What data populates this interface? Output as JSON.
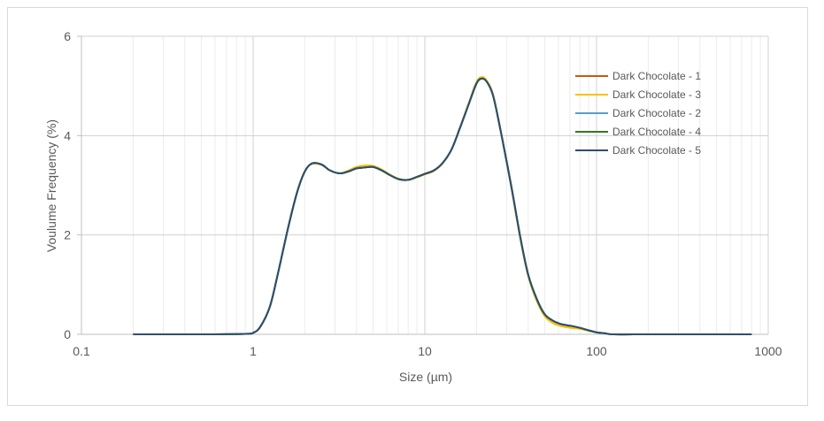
{
  "chart_data": {
    "type": "line",
    "title": "",
    "xlabel": "Size (µm)",
    "ylabel": "Voulume Frequency (%)",
    "x_scale": "log",
    "xlim": [
      0.1,
      1000
    ],
    "ylim": [
      0,
      6
    ],
    "x_ticks": [
      "0.1",
      "1",
      "10",
      "100",
      "1000"
    ],
    "y_ticks": [
      "0",
      "2",
      "4",
      "6"
    ],
    "grid": "on",
    "legend_position": "right",
    "colors": {
      "Dark Chocolate - 1": "#c55a11",
      "Dark Chocolate - 3": "#ffc000",
      "Dark Chocolate - 2": "#5b9bd5",
      "Dark Chocolate - 4": "#38761d",
      "Dark Chocolate - 5": "#2e4e6f"
    },
    "x": [
      0.2,
      0.5,
      0.9,
      1.0,
      1.1,
      1.25,
      1.4,
      1.6,
      1.8,
      2.0,
      2.2,
      2.5,
      2.8,
      3.2,
      3.6,
      4.0,
      4.5,
      5.0,
      5.6,
      6.3,
      7.1,
      8.0,
      9.0,
      10.0,
      11.3,
      12.7,
      14.3,
      16.0,
      18.0,
      20.0,
      21.5,
      23.0,
      25.0,
      28.0,
      32.0,
      36.0,
      40.0,
      45.0,
      50.0,
      56.0,
      63.0,
      71.0,
      80.0,
      90.0,
      100.0,
      112.0,
      126.0,
      200.0,
      400.0,
      800.0
    ],
    "series": [
      {
        "name": "Dark Chocolate - 1",
        "values": [
          0,
          0,
          0.01,
          0.03,
          0.15,
          0.55,
          1.25,
          2.15,
          2.85,
          3.28,
          3.44,
          3.42,
          3.3,
          3.24,
          3.28,
          3.34,
          3.36,
          3.37,
          3.3,
          3.2,
          3.12,
          3.11,
          3.17,
          3.23,
          3.3,
          3.45,
          3.72,
          4.15,
          4.63,
          5.05,
          5.15,
          5.08,
          4.8,
          4.0,
          2.95,
          1.95,
          1.2,
          0.7,
          0.4,
          0.27,
          0.2,
          0.17,
          0.13,
          0.08,
          0.04,
          0.02,
          0.0,
          0,
          0,
          0
        ]
      },
      {
        "name": "Dark Chocolate - 3",
        "values": [
          0,
          0,
          0.01,
          0.03,
          0.15,
          0.55,
          1.25,
          2.15,
          2.85,
          3.28,
          3.43,
          3.41,
          3.3,
          3.24,
          3.3,
          3.37,
          3.4,
          3.39,
          3.32,
          3.21,
          3.13,
          3.11,
          3.16,
          3.22,
          3.29,
          3.44,
          3.72,
          4.16,
          4.65,
          5.08,
          5.18,
          5.1,
          4.82,
          4.0,
          2.93,
          1.92,
          1.17,
          0.66,
          0.36,
          0.22,
          0.16,
          0.13,
          0.11,
          0.07,
          0.04,
          0.02,
          0.0,
          0,
          0,
          0
        ]
      },
      {
        "name": "Dark Chocolate - 2",
        "values": [
          0,
          0,
          0.01,
          0.03,
          0.15,
          0.55,
          1.25,
          2.15,
          2.85,
          3.28,
          3.44,
          3.42,
          3.3,
          3.24,
          3.28,
          3.34,
          3.36,
          3.37,
          3.3,
          3.2,
          3.12,
          3.11,
          3.17,
          3.23,
          3.3,
          3.45,
          3.72,
          4.15,
          4.63,
          5.05,
          5.15,
          5.08,
          4.8,
          4.0,
          2.95,
          1.95,
          1.2,
          0.7,
          0.4,
          0.27,
          0.2,
          0.17,
          0.13,
          0.08,
          0.04,
          0.02,
          0.0,
          0,
          0,
          0
        ]
      },
      {
        "name": "Dark Chocolate - 4",
        "values": [
          0,
          0,
          0.01,
          0.03,
          0.15,
          0.55,
          1.25,
          2.15,
          2.85,
          3.28,
          3.44,
          3.42,
          3.3,
          3.24,
          3.28,
          3.34,
          3.36,
          3.37,
          3.3,
          3.2,
          3.12,
          3.11,
          3.17,
          3.23,
          3.3,
          3.45,
          3.72,
          4.15,
          4.63,
          5.05,
          5.15,
          5.08,
          4.8,
          4.0,
          2.95,
          1.95,
          1.2,
          0.7,
          0.4,
          0.27,
          0.2,
          0.17,
          0.13,
          0.08,
          0.04,
          0.02,
          0.0,
          0,
          0,
          0
        ]
      },
      {
        "name": "Dark Chocolate - 5",
        "values": [
          0,
          0,
          0.01,
          0.03,
          0.15,
          0.55,
          1.25,
          2.15,
          2.85,
          3.28,
          3.44,
          3.42,
          3.3,
          3.24,
          3.28,
          3.34,
          3.36,
          3.37,
          3.3,
          3.2,
          3.12,
          3.11,
          3.17,
          3.23,
          3.3,
          3.45,
          3.72,
          4.15,
          4.63,
          5.05,
          5.15,
          5.08,
          4.8,
          4.0,
          2.95,
          1.95,
          1.2,
          0.7,
          0.4,
          0.27,
          0.2,
          0.17,
          0.13,
          0.08,
          0.04,
          0.02,
          0.0,
          0,
          0,
          0
        ]
      }
    ]
  }
}
